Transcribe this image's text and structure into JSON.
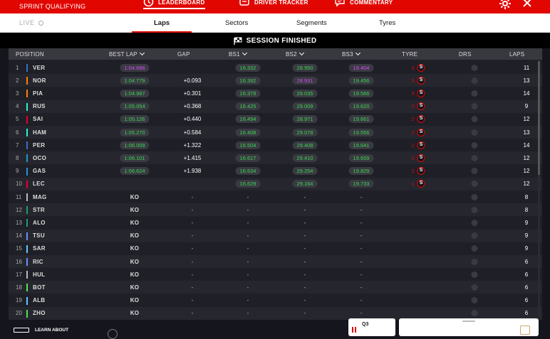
{
  "app": {
    "session_title": "SPRINT QUALIFYING",
    "top_tabs": [
      {
        "label": "LEADERBOARD",
        "icon": "clock-icon",
        "active": true
      },
      {
        "label": "DRIVER TRACKER",
        "icon": "car-icon",
        "active": false
      },
      {
        "label": "COMMENTARY",
        "icon": "chat-icon",
        "active": false
      }
    ]
  },
  "subbar": {
    "live_label": "LIVE",
    "tabs": [
      {
        "label": "Laps",
        "active": true
      },
      {
        "label": "Sectors",
        "active": false
      },
      {
        "label": "Segments",
        "active": false
      },
      {
        "label": "Tyres",
        "active": false
      }
    ]
  },
  "status": {
    "text": "SESSION FINISHED"
  },
  "columns": {
    "position": "POSITION",
    "best_lap": "BEST LAP",
    "gap": "GAP",
    "bs1": "BS1",
    "bs2": "BS2",
    "bs3": "BS3",
    "tyre": "TYRE",
    "drs": "DRS",
    "laps": "LAPS"
  },
  "colors": {
    "accent": "#e10600",
    "personal_best": "#3bd451",
    "overall_best": "#d64cf5",
    "background": "#15151e"
  },
  "rows": [
    {
      "pos": "1",
      "code": "VER",
      "team_color": "#3671c6",
      "best": "1:04.686",
      "best_c": "purple",
      "gap": "",
      "bs1": "16.332",
      "bs1_c": "green",
      "bs2": "28.950",
      "bs2_c": "green",
      "bs3": "19.404",
      "bs3_c": "purple",
      "tyre_n": "3",
      "tyre": "S",
      "laps": "11"
    },
    {
      "pos": "2",
      "code": "NOR",
      "team_color": "#ff8000",
      "best": "1:04.779",
      "best_c": "green",
      "gap": "+0.093",
      "bs1": "16.392",
      "bs1_c": "green",
      "bs2": "28.931",
      "bs2_c": "purple",
      "bs3": "19.456",
      "bs3_c": "green",
      "tyre_n": "3",
      "tyre": "S",
      "laps": "13"
    },
    {
      "pos": "3",
      "code": "PIA",
      "team_color": "#ff8000",
      "best": "1:04.987",
      "best_c": "green",
      "gap": "+0.301",
      "bs1": "16.379",
      "bs1_c": "green",
      "bs2": "29.035",
      "bs2_c": "green",
      "bs3": "19.566",
      "bs3_c": "green",
      "tyre_n": "3",
      "tyre": "S",
      "laps": "14"
    },
    {
      "pos": "4",
      "code": "RUS",
      "team_color": "#27f4d2",
      "best": "1:05.054",
      "best_c": "green",
      "gap": "+0.368",
      "bs1": "16.425",
      "bs1_c": "green",
      "bs2": "29.009",
      "bs2_c": "green",
      "bs3": "19.620",
      "bs3_c": "green",
      "tyre_n": "2",
      "tyre": "S",
      "laps": "9"
    },
    {
      "pos": "5",
      "code": "SAI",
      "team_color": "#e8002d",
      "best": "1:05.126",
      "best_c": "green",
      "gap": "+0.440",
      "bs1": "16.494",
      "bs1_c": "green",
      "bs2": "28.971",
      "bs2_c": "green",
      "bs3": "19.661",
      "bs3_c": "green",
      "tyre_n": "2",
      "tyre": "S",
      "laps": "12"
    },
    {
      "pos": "6",
      "code": "HAM",
      "team_color": "#27f4d2",
      "best": "1:05.270",
      "best_c": "green",
      "gap": "+0.584",
      "bs1": "16.408",
      "bs1_c": "green",
      "bs2": "29.078",
      "bs2_c": "green",
      "bs3": "19.556",
      "bs3_c": "green",
      "tyre_n": "2",
      "tyre": "S",
      "laps": "13"
    },
    {
      "pos": "7",
      "code": "PER",
      "team_color": "#3671c6",
      "best": "1:06.008",
      "best_c": "green",
      "gap": "+1.322",
      "bs1": "16.504",
      "bs1_c": "green",
      "bs2": "29.408",
      "bs2_c": "green",
      "bs3": "19.641",
      "bs3_c": "green",
      "tyre_n": "2",
      "tyre": "S",
      "laps": "14"
    },
    {
      "pos": "8",
      "code": "OCO",
      "team_color": "#2293d1",
      "best": "1:06.101",
      "best_c": "green",
      "gap": "+1.415",
      "bs1": "16.617",
      "bs1_c": "green",
      "bs2": "29.410",
      "bs2_c": "green",
      "bs3": "19.659",
      "bs3_c": "green",
      "tyre_n": "2",
      "tyre": "S",
      "laps": "12"
    },
    {
      "pos": "9",
      "code": "GAS",
      "team_color": "#2293d1",
      "best": "1:06.624",
      "best_c": "green",
      "gap": "+1.938",
      "bs1": "16.634",
      "bs1_c": "green",
      "bs2": "29.254",
      "bs2_c": "green",
      "bs3": "19.829",
      "bs3_c": "green",
      "tyre_n": "2",
      "tyre": "S",
      "laps": "12"
    },
    {
      "pos": "10",
      "code": "LEC",
      "team_color": "#e8002d",
      "best": "",
      "best_c": "green",
      "gap": "",
      "bs1": "16.629",
      "bs1_c": "green",
      "bs2": "29.164",
      "bs2_c": "green",
      "bs3": "19.733",
      "bs3_c": "green",
      "tyre_n": "1",
      "tyre": "S",
      "laps": "12"
    },
    {
      "pos": "11",
      "code": "MAG",
      "team_color": "#b6babd",
      "best": "KO",
      "gap": "-",
      "bs1": "-",
      "bs2": "-",
      "bs3": "-",
      "laps": "8"
    },
    {
      "pos": "12",
      "code": "STR",
      "team_color": "#229971",
      "best": "KO",
      "gap": "-",
      "bs1": "-",
      "bs2": "-",
      "bs3": "-",
      "laps": "8"
    },
    {
      "pos": "13",
      "code": "ALO",
      "team_color": "#229971",
      "best": "KO",
      "gap": "-",
      "bs1": "-",
      "bs2": "-",
      "bs3": "-",
      "laps": "9"
    },
    {
      "pos": "14",
      "code": "TSU",
      "team_color": "#6692ff",
      "best": "KO",
      "gap": "-",
      "bs1": "-",
      "bs2": "-",
      "bs3": "-",
      "laps": "9"
    },
    {
      "pos": "15",
      "code": "SAR",
      "team_color": "#64c4ff",
      "best": "KO",
      "gap": "-",
      "bs1": "-",
      "bs2": "-",
      "bs3": "-",
      "laps": "9"
    },
    {
      "pos": "16",
      "code": "RIC",
      "team_color": "#6692ff",
      "best": "KO",
      "gap": "-",
      "bs1": "-",
      "bs2": "-",
      "bs3": "-",
      "laps": "6"
    },
    {
      "pos": "17",
      "code": "HUL",
      "team_color": "#b6babd",
      "best": "KO",
      "gap": "-",
      "bs1": "-",
      "bs2": "-",
      "bs3": "-",
      "laps": "6"
    },
    {
      "pos": "18",
      "code": "BOT",
      "team_color": "#52e252",
      "best": "KO",
      "gap": "-",
      "bs1": "-",
      "bs2": "-",
      "bs3": "-",
      "laps": "6"
    },
    {
      "pos": "19",
      "code": "ALB",
      "team_color": "#64c4ff",
      "best": "KO",
      "gap": "-",
      "bs1": "-",
      "bs2": "-",
      "bs3": "-",
      "laps": "6"
    },
    {
      "pos": "20",
      "code": "ZHO",
      "team_color": "#52e252",
      "best": "KO",
      "gap": "-",
      "bs1": "-",
      "bs2": "-",
      "bs3": "-",
      "laps": "6"
    }
  ],
  "footer": {
    "learn_label": "LEARN ABOUT",
    "q3_label": "Q3"
  }
}
